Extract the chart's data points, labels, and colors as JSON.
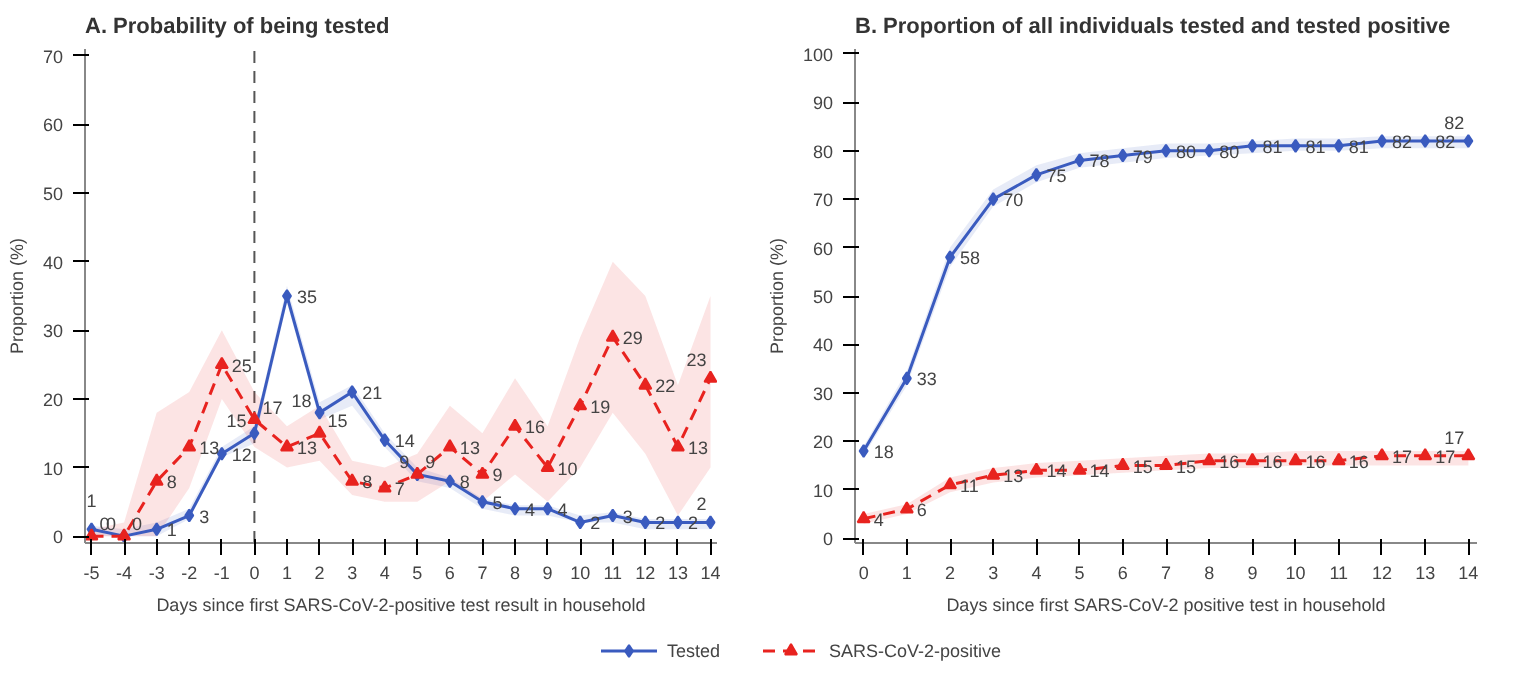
{
  "chart_data": [
    {
      "type": "line",
      "title": "A. Probability of being tested",
      "xlabel": "Days since first SARS-CoV-2-positive test result in household",
      "ylabel": "Proportion (%)",
      "x": [
        -5,
        -4,
        -3,
        -2,
        -1,
        0,
        1,
        2,
        3,
        4,
        5,
        6,
        7,
        8,
        9,
        10,
        11,
        12,
        13,
        14
      ],
      "xlim": [
        -5.2,
        14.2
      ],
      "xticks": [
        -5,
        -4,
        -3,
        -2,
        -1,
        0,
        1,
        2,
        3,
        4,
        5,
        6,
        7,
        8,
        9,
        10,
        11,
        12,
        13,
        14
      ],
      "ylim": [
        -1,
        71
      ],
      "yticks": [
        0,
        10,
        20,
        30,
        40,
        50,
        60,
        70
      ],
      "grid": false,
      "legend": "bottom",
      "data_labels": true,
      "ref_lines": [
        {
          "axis": "x",
          "value": 0,
          "line_style": "dashed",
          "color": "#555555"
        }
      ],
      "series": [
        {
          "name": "Tested",
          "color": "#3a5bbf",
          "marker": "diamond",
          "line_style": "solid",
          "values": [
            1,
            0,
            1,
            3,
            12,
            15,
            35,
            18,
            21,
            14,
            9,
            8,
            5,
            4,
            4,
            2,
            3,
            2,
            2,
            2
          ],
          "lower": [
            0,
            0,
            0,
            2.5,
            11.5,
            13.5,
            34,
            17,
            19,
            13,
            8,
            7,
            4,
            3,
            3,
            2,
            2,
            1,
            1,
            1
          ],
          "upper": [
            1.5,
            1,
            2,
            4,
            13,
            16,
            36.5,
            19.5,
            22,
            15,
            10,
            8.5,
            5.5,
            4.5,
            4.5,
            3,
            3.5,
            2.5,
            2.5,
            2.5
          ]
        },
        {
          "name": "SARS-CoV-2-positive",
          "color": "#e8231f",
          "marker": "triangle",
          "line_style": "dashed",
          "values": [
            0,
            0,
            8,
            13,
            25,
            17,
            13,
            15,
            8,
            7,
            9,
            13,
            9,
            16,
            10,
            19,
            29,
            22,
            13,
            23
          ],
          "lower": [
            0,
            0,
            0,
            7,
            20,
            13,
            10,
            11,
            6,
            5,
            5,
            8,
            5,
            9,
            5,
            10,
            18,
            12,
            3,
            10
          ],
          "upper": [
            1,
            2,
            18,
            21,
            30,
            21,
            16,
            19,
            11,
            10,
            12,
            19,
            15,
            23,
            16,
            29,
            40,
            35,
            22,
            35
          ]
        }
      ]
    },
    {
      "type": "line",
      "title": "B. Proportion of all individuals tested and tested positive",
      "xlabel": "Days since first SARS-CoV-2 positive test in household",
      "ylabel": "Proportion (%)",
      "x": [
        0,
        1,
        2,
        3,
        4,
        5,
        6,
        7,
        8,
        9,
        10,
        11,
        12,
        13,
        14
      ],
      "xlim": [
        -0.2,
        14.2
      ],
      "xticks": [
        0,
        1,
        2,
        3,
        4,
        5,
        6,
        7,
        8,
        9,
        10,
        11,
        12,
        13,
        14
      ],
      "ylim": [
        -1,
        101
      ],
      "yticks": [
        0,
        10,
        20,
        30,
        40,
        50,
        60,
        70,
        80,
        90,
        100
      ],
      "grid": false,
      "data_labels": true,
      "series": [
        {
          "color": "#3a5bbf",
          "marker": "diamond",
          "line_style": "solid",
          "values": [
            18,
            33,
            58,
            70,
            75,
            78,
            79,
            80,
            80,
            81,
            81,
            81,
            82,
            82,
            82
          ],
          "lower": [
            17,
            31.5,
            56,
            68.5,
            73.5,
            76.5,
            77.5,
            78.5,
            79,
            79.5,
            80,
            80,
            80.5,
            80.5,
            80.5
          ],
          "upper": [
            19,
            34.5,
            60,
            72,
            77,
            79.5,
            80.5,
            81.5,
            81.5,
            82,
            82.5,
            82.5,
            83,
            83,
            83
          ]
        },
        {
          "color": "#e8231f",
          "marker": "triangle",
          "line_style": "dashed",
          "values": [
            4,
            6,
            11,
            13,
            14,
            14,
            15,
            15,
            16,
            16,
            16,
            16,
            17,
            17,
            17
          ],
          "lower": [
            3,
            5,
            9.5,
            11.5,
            12.5,
            13,
            13.5,
            14,
            14.5,
            14.5,
            15,
            15,
            15,
            15,
            15
          ],
          "upper": [
            5,
            7,
            12.5,
            14.5,
            15.5,
            16,
            16.5,
            17,
            17.5,
            17.5,
            18,
            18,
            18,
            18,
            18
          ]
        }
      ]
    }
  ]
}
